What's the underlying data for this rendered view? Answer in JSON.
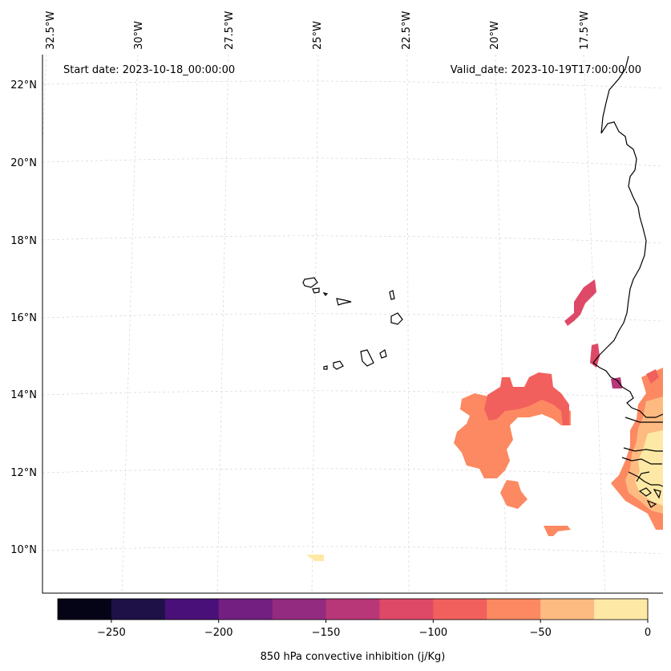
{
  "map": {
    "start_date_label": "Start date: 2023-10-18_00:00:00",
    "valid_date_label": "Valid_date: 2023-10-19T17:00:00.00",
    "lon_labels": [
      "32.5°W",
      "30°W",
      "27.5°W",
      "25°W",
      "22.5°W",
      "20°W",
      "17.5°W"
    ],
    "lat_labels": [
      "22°N",
      "20°N",
      "18°N",
      "16°N",
      "14°N",
      "12°N",
      "10°N"
    ]
  },
  "colorbar": {
    "label": "850 hPa convective inhibition (j/Kg)",
    "tick_labels": [
      "−250",
      "−200",
      "−150",
      "−100",
      "−50",
      "0"
    ],
    "bins": [
      {
        "min": -275,
        "max": -250,
        "color": "#050416"
      },
      {
        "min": -250,
        "max": -225,
        "color": "#1d1147"
      },
      {
        "min": -225,
        "max": -200,
        "color": "#4a1079"
      },
      {
        "min": -200,
        "max": -175,
        "color": "#721f81"
      },
      {
        "min": -175,
        "max": -150,
        "color": "#932b80"
      },
      {
        "min": -150,
        "max": -125,
        "color": "#b73779"
      },
      {
        "min": -125,
        "max": -100,
        "color": "#de4968"
      },
      {
        "min": -100,
        "max": -75,
        "color": "#f1605d"
      },
      {
        "min": -75,
        "max": -50,
        "color": "#fc8961"
      },
      {
        "min": -50,
        "max": -25,
        "color": "#febb81"
      },
      {
        "min": -25,
        "max": 0,
        "color": "#fde9a5"
      }
    ]
  }
}
